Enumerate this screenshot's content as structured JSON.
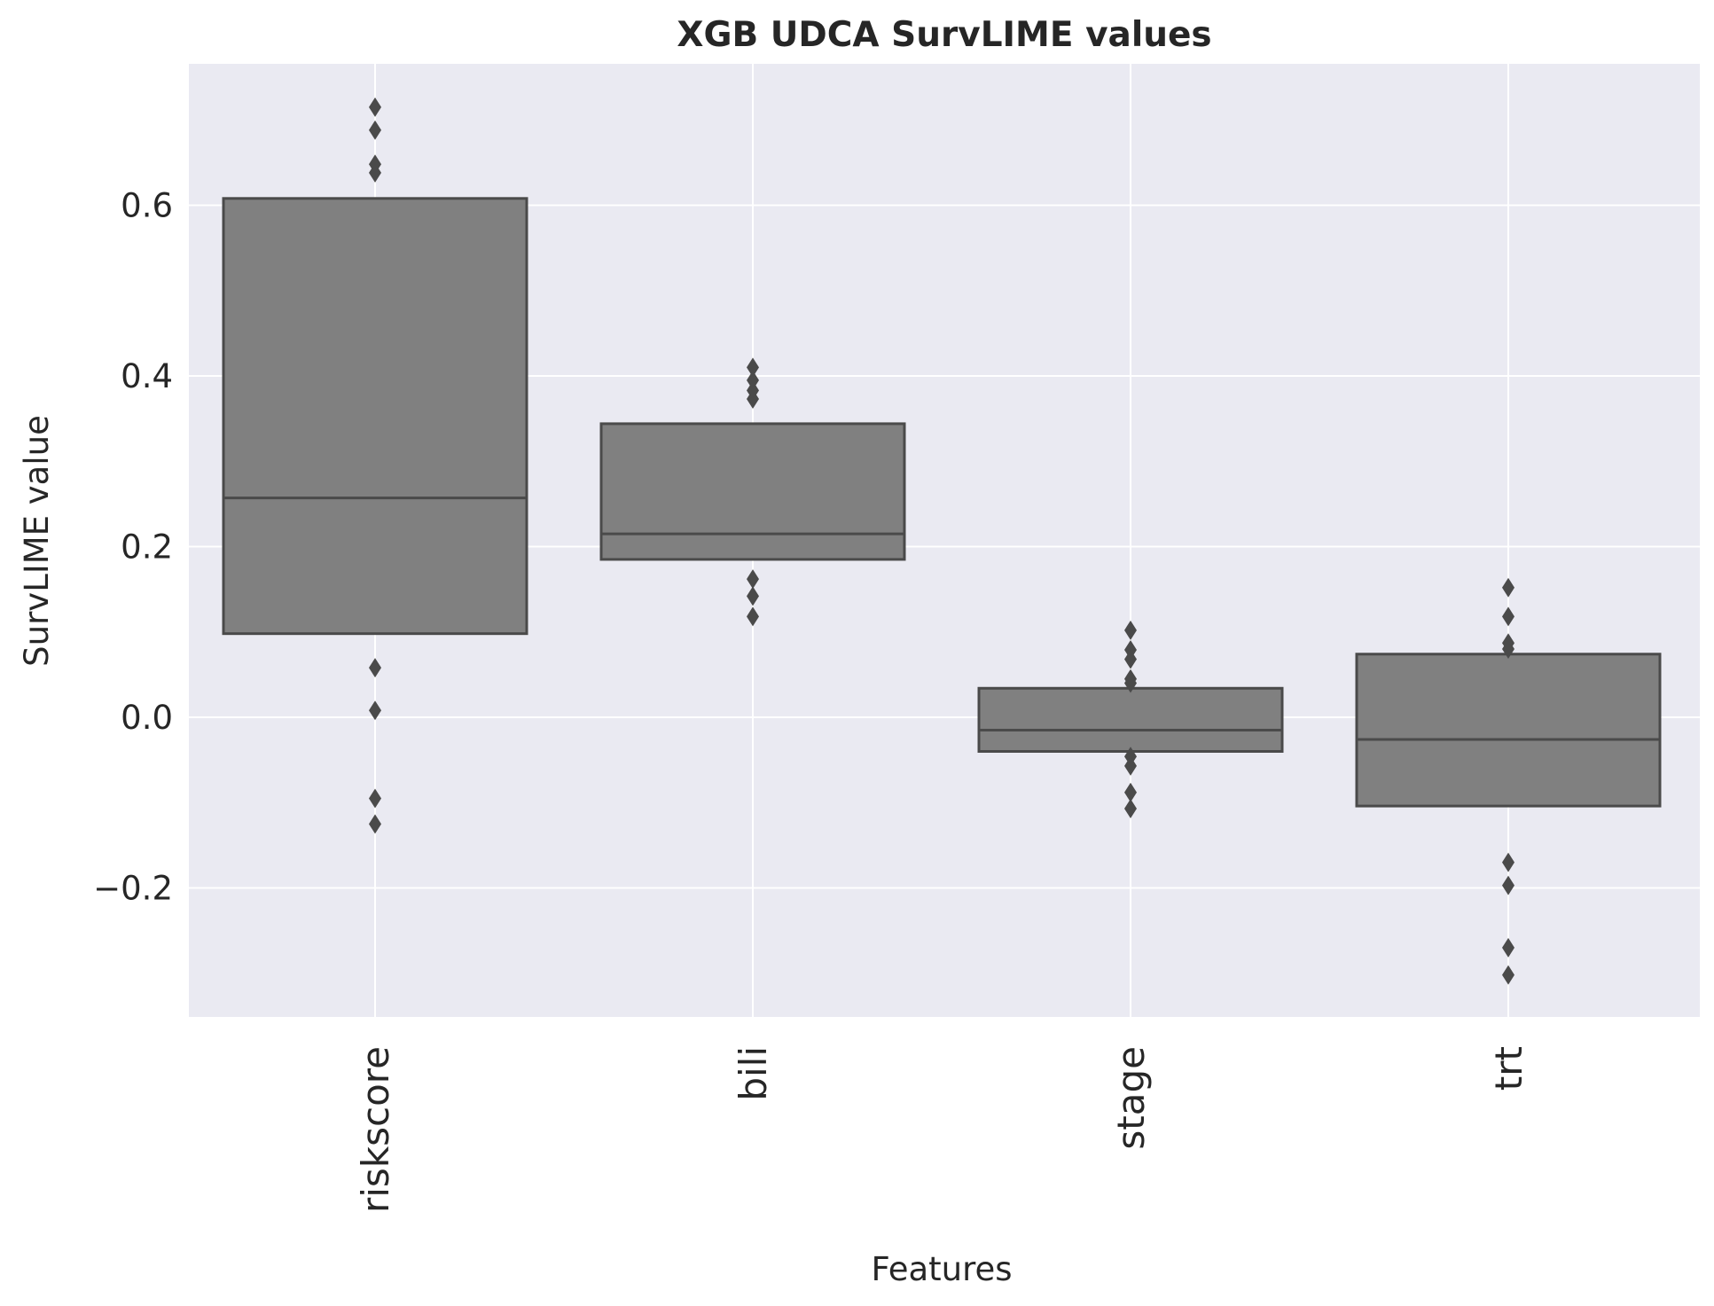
{
  "chart_data": {
    "type": "boxplot",
    "title": "XGB UDCA SurvLIME values",
    "xlabel": "Features",
    "ylabel": "SurvLIME value",
    "ylim": [
      -0.35,
      0.76
    ],
    "yticks": [
      {
        "value": -0.2,
        "label": "−0.2"
      },
      {
        "value": 0.0,
        "label": "0.0"
      },
      {
        "value": 0.2,
        "label": "0.2"
      },
      {
        "value": 0.4,
        "label": "0.4"
      },
      {
        "value": 0.6,
        "label": "0.6"
      }
    ],
    "grid": true,
    "colors": {
      "background": "#eaeaf2",
      "grid": "#ffffff",
      "box_fill": "#808080",
      "box_edge": "#4a4a4a",
      "outlier": "#4a4a4a"
    },
    "categories": [
      "riskscore",
      "bili",
      "stage",
      "trt"
    ],
    "boxes": [
      {
        "name": "riskscore",
        "q1": 0.098,
        "median": 0.257,
        "q3": 0.608,
        "outliers": [
          0.715,
          0.688,
          0.648,
          0.638,
          0.058,
          0.008,
          -0.095,
          -0.125
        ]
      },
      {
        "name": "bili",
        "q1": 0.185,
        "median": 0.215,
        "q3": 0.344,
        "outliers": [
          0.41,
          0.395,
          0.383,
          0.373,
          0.162,
          0.142,
          0.118
        ]
      },
      {
        "name": "stage",
        "q1": -0.04,
        "median": -0.015,
        "q3": 0.034,
        "outliers": [
          0.102,
          0.079,
          0.068,
          0.045,
          0.04,
          -0.046,
          -0.057,
          -0.088,
          -0.107
        ]
      },
      {
        "name": "trt",
        "q1": -0.104,
        "median": -0.026,
        "q3": 0.074,
        "outliers": [
          0.152,
          0.118,
          0.087,
          0.08,
          -0.17,
          -0.197,
          -0.27,
          -0.302
        ]
      }
    ]
  }
}
